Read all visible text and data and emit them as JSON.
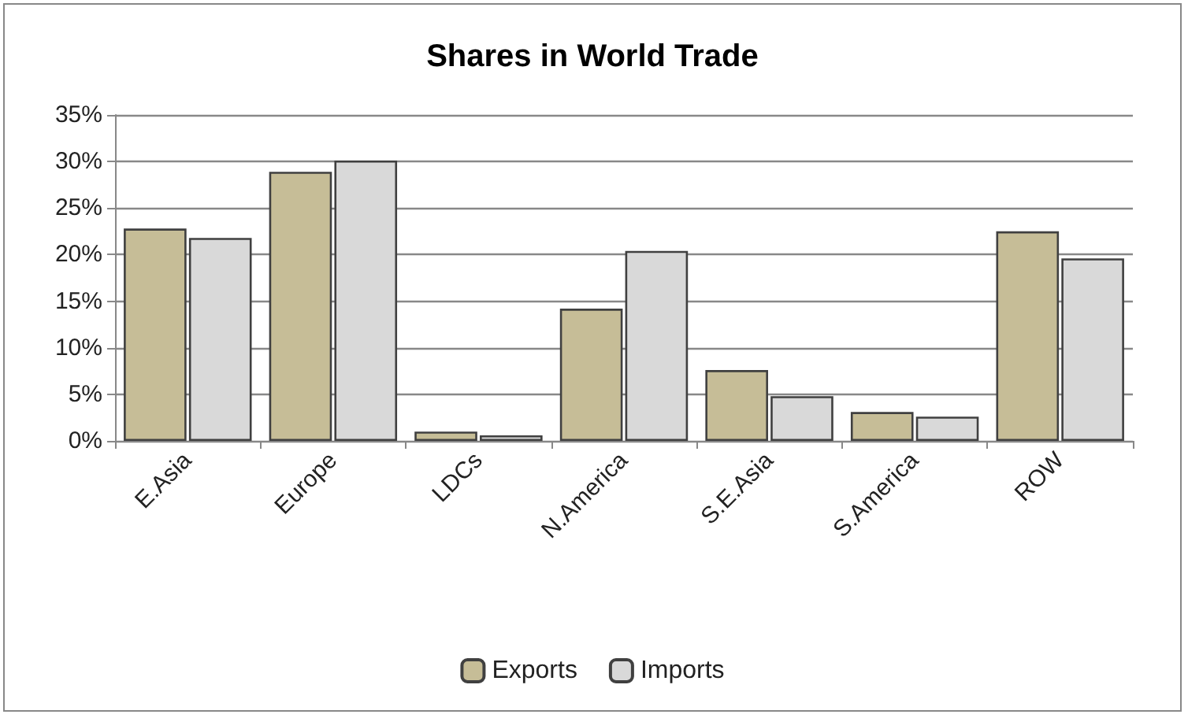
{
  "chart_data": {
    "type": "bar",
    "title": "Shares in World Trade",
    "categories": [
      "E.Asia",
      "Europe",
      "LDCs",
      "N.America",
      "S.E.Asia",
      "S.America",
      "ROW"
    ],
    "series": [
      {
        "name": "Exports",
        "color": "#c6bd97",
        "values": [
          22.8,
          28.9,
          1.0,
          14.2,
          7.6,
          3.1,
          22.5
        ]
      },
      {
        "name": "Imports",
        "color": "#d9d9d9",
        "values": [
          21.8,
          30.1,
          0.6,
          20.4,
          4.8,
          2.6,
          19.6
        ]
      }
    ],
    "ylim": [
      0,
      35
    ],
    "yticks": [
      {
        "value": 0,
        "label": "0%"
      },
      {
        "value": 5,
        "label": "5%"
      },
      {
        "value": 10,
        "label": "10%"
      },
      {
        "value": 15,
        "label": "15%"
      },
      {
        "value": 20,
        "label": "20%"
      },
      {
        "value": 25,
        "label": "25%"
      },
      {
        "value": 30,
        "label": "30%"
      },
      {
        "value": 35,
        "label": "35%"
      }
    ],
    "grid": "y",
    "legend": "bottom"
  }
}
